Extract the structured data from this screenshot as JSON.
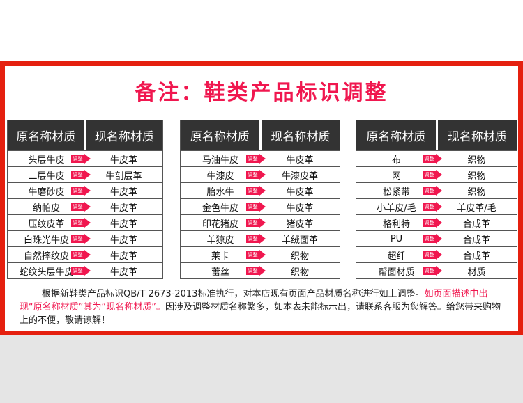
{
  "title": "备注：鞋类产品标识调整",
  "header": {
    "original": "原名称材质",
    "current": "现名称材质"
  },
  "arrow_label": "调整",
  "accent_color": "#f0174f",
  "border_color": "#e5200f",
  "tables": [
    [
      [
        "头层牛皮",
        "牛皮革"
      ],
      [
        "二层牛皮",
        "牛剖层革"
      ],
      [
        "牛磨砂皮",
        "牛皮革"
      ],
      [
        "纳帕皮",
        "牛皮革"
      ],
      [
        "压纹皮革",
        "牛皮革"
      ],
      [
        "白珠光牛皮",
        "牛皮革"
      ],
      [
        "自然摔纹皮",
        "牛皮革"
      ],
      [
        "蛇纹头层牛皮",
        "牛皮革"
      ]
    ],
    [
      [
        "马油牛皮",
        "牛皮革"
      ],
      [
        "牛漆皮",
        "牛漆皮革"
      ],
      [
        "胎水牛",
        "牛皮革"
      ],
      [
        "金色牛皮",
        "牛皮革"
      ],
      [
        "印花猪皮",
        "猪皮革"
      ],
      [
        "羊猄皮",
        "羊绒面革"
      ],
      [
        "莱卡",
        "织物"
      ],
      [
        "蕾丝",
        "织物"
      ]
    ],
    [
      [
        "布",
        "织物"
      ],
      [
        "网",
        "织物"
      ],
      [
        "松紧带",
        "织物"
      ],
      [
        "小羊皮/毛",
        "羊皮革/毛"
      ],
      [
        "格利特",
        "合成革"
      ],
      [
        "PU",
        "合成革"
      ],
      [
        "超纤",
        "合成革"
      ],
      [
        "帮面材质",
        "材质"
      ]
    ]
  ],
  "note": {
    "part1": "根据新鞋类产品标识QB/T 2673-2013标准执行，对本店现有页面产品材质名称进行如上调整。",
    "part2": "如页面描述中出现“原名称材质”其为“现名称材质”。",
    "part3": "因涉及调整材质名称繁多，如本表未能标示出，请联系客服为您解答。给您带来购物上的不便，敬请谅解！"
  }
}
